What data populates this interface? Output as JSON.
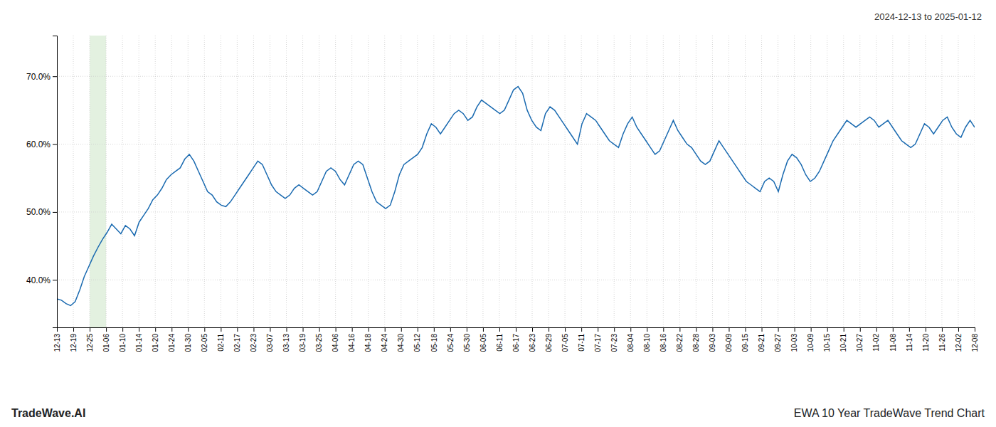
{
  "chart_data": {
    "type": "line",
    "title": "EWA 10 Year TradeWave Trend Chart",
    "subtitle": "2024-12-13 to 2025-01-12",
    "annotations": [
      "TradeWave.AI"
    ],
    "color": "#1a6ab0",
    "grid": true,
    "shade": {
      "from": 7.178571428571,
      "to": 10.767857142857,
      "color": "#d4ead0"
    },
    "xlim": [
      0,
      201
    ],
    "xticks": [
      {
        "value": 0,
        "label": "12-13"
      },
      {
        "value": 3.589285714286,
        "label": "12-19"
      },
      {
        "value": 7.178571428571,
        "label": "12-25"
      },
      {
        "value": 10.767857142857,
        "label": "01-06"
      },
      {
        "value": 14.357142857143,
        "label": "01-10"
      },
      {
        "value": 17.946428571429,
        "label": "01-14"
      },
      {
        "value": 21.535714285714,
        "label": "01-20"
      },
      {
        "value": 25.125,
        "label": "01-24"
      },
      {
        "value": 28.714285714286,
        "label": "01-30"
      },
      {
        "value": 32.303571428571,
        "label": "02-05"
      },
      {
        "value": 35.892857142857,
        "label": "02-11"
      },
      {
        "value": 39.482142857143,
        "label": "02-17"
      },
      {
        "value": 43.071428571429,
        "label": "02-23"
      },
      {
        "value": 46.660714285714,
        "label": "03-07"
      },
      {
        "value": 50.25,
        "label": "03-13"
      },
      {
        "value": 53.839285714286,
        "label": "03-19"
      },
      {
        "value": 57.428571428571,
        "label": "03-25"
      },
      {
        "value": 61.017857142857,
        "label": "04-06"
      },
      {
        "value": 64.607142857143,
        "label": "04-16"
      },
      {
        "value": 68.196428571429,
        "label": "04-18"
      },
      {
        "value": 71.785714285714,
        "label": "04-24"
      },
      {
        "value": 75.375,
        "label": "04-30"
      },
      {
        "value": 78.964285714286,
        "label": "05-12"
      },
      {
        "value": 82.553571428571,
        "label": "05-18"
      },
      {
        "value": 86.142857142857,
        "label": "05-24"
      },
      {
        "value": 89.732142857143,
        "label": "05-30"
      },
      {
        "value": 93.321428571429,
        "label": "06-05"
      },
      {
        "value": 96.910714285714,
        "label": "06-11"
      },
      {
        "value": 100.5,
        "label": "06-17"
      },
      {
        "value": 104.089285714286,
        "label": "06-23"
      },
      {
        "value": 107.678571428571,
        "label": "06-29"
      },
      {
        "value": 111.267857142857,
        "label": "07-05"
      },
      {
        "value": 114.857142857143,
        "label": "07-11"
      },
      {
        "value": 118.446428571429,
        "label": "07-17"
      },
      {
        "value": 122.035714285714,
        "label": "07-23"
      },
      {
        "value": 125.625,
        "label": "08-04"
      },
      {
        "value": 129.214285714286,
        "label": "08-10"
      },
      {
        "value": 132.803571428571,
        "label": "08-16"
      },
      {
        "value": 136.392857142857,
        "label": "08-22"
      },
      {
        "value": 139.982142857143,
        "label": "08-28"
      },
      {
        "value": 143.571428571429,
        "label": "09-03"
      },
      {
        "value": 147.160714285714,
        "label": "09-09"
      },
      {
        "value": 150.75,
        "label": "09-15"
      },
      {
        "value": 154.339285714286,
        "label": "09-21"
      },
      {
        "value": 157.928571428571,
        "label": "09-27"
      },
      {
        "value": 161.517857142857,
        "label": "10-03"
      },
      {
        "value": 165.107142857143,
        "label": "10-09"
      },
      {
        "value": 168.696428571429,
        "label": "10-15"
      },
      {
        "value": 172.285714285714,
        "label": "10-21"
      },
      {
        "value": 175.875,
        "label": "10-27"
      },
      {
        "value": 179.464285714286,
        "label": "11-02"
      },
      {
        "value": 183.053571428571,
        "label": "11-08"
      },
      {
        "value": 186.642857142857,
        "label": "11-14"
      },
      {
        "value": 190.232142857143,
        "label": "11-20"
      },
      {
        "value": 193.821428571429,
        "label": "11-26"
      },
      {
        "value": 197.410714285714,
        "label": "12-02"
      },
      {
        "value": 201,
        "label": "12-08"
      }
    ],
    "ylim": [
      33.0,
      76.0
    ],
    "yticks": [
      {
        "value": 40,
        "label": "40.0%"
      },
      {
        "value": 50,
        "label": "50.0%"
      },
      {
        "value": 60,
        "label": "60.0%"
      },
      {
        "value": 70,
        "label": "70.0%"
      }
    ],
    "values": [
      37.2,
      37.0,
      36.5,
      36.2,
      36.8,
      38.5,
      40.5,
      42.0,
      43.5,
      44.8,
      46.0,
      47.0,
      48.2,
      47.5,
      46.8,
      48.0,
      47.5,
      46.5,
      48.5,
      49.5,
      50.5,
      51.8,
      52.5,
      53.5,
      54.8,
      55.5,
      56.0,
      56.5,
      57.8,
      58.5,
      57.5,
      56.0,
      54.5,
      53.0,
      52.5,
      51.5,
      51.0,
      50.8,
      51.5,
      52.5,
      53.5,
      54.5,
      55.5,
      56.5,
      57.5,
      57.0,
      55.5,
      54.0,
      53.0,
      52.5,
      52.0,
      52.5,
      53.5,
      54.0,
      53.5,
      53.0,
      52.5,
      53.0,
      54.5,
      56.0,
      56.5,
      56.0,
      54.8,
      54.0,
      55.5,
      57.0,
      57.5,
      57.0,
      55.0,
      53.0,
      51.5,
      51.0,
      50.5,
      51.0,
      53.0,
      55.5,
      57.0,
      57.5,
      58.0,
      58.5,
      59.5,
      61.5,
      63.0,
      62.5,
      61.5,
      62.5,
      63.5,
      64.5,
      65.0,
      64.5,
      63.5,
      64.0,
      65.5,
      66.5,
      66.0,
      65.5,
      65.0,
      64.5,
      65.0,
      66.5,
      68.0,
      68.5,
      67.5,
      65.0,
      63.5,
      62.5,
      62.0,
      64.5,
      65.5,
      65.0,
      64.0,
      63.0,
      62.0,
      61.0,
      60.0,
      63.0,
      64.5,
      64.0,
      63.5,
      62.5,
      61.5,
      60.5,
      60.0,
      59.5,
      61.5,
      63.0,
      64.0,
      62.5,
      61.5,
      60.5,
      59.5,
      58.5,
      59.0,
      60.5,
      62.0,
      63.5,
      62.0,
      61.0,
      60.0,
      59.5,
      58.5,
      57.5,
      57.0,
      57.5,
      59.0,
      60.5,
      59.5,
      58.5,
      57.5,
      56.5,
      55.5,
      54.5,
      54.0,
      53.5,
      53.0,
      54.5,
      55.0,
      54.5,
      53.0,
      55.5,
      57.5,
      58.5,
      58.0,
      57.0,
      55.5,
      54.5,
      55.0,
      56.0,
      57.5,
      59.0,
      60.5,
      61.5,
      62.5,
      63.5,
      63.0,
      62.5,
      63.0,
      63.5,
      64.0,
      63.5,
      62.5,
      63.0,
      63.5,
      62.5,
      61.5,
      60.5,
      60.0,
      59.5,
      60.0,
      61.5,
      63.0,
      62.5,
      61.5,
      62.5,
      63.5,
      64.0,
      62.5,
      61.5,
      61.0,
      62.5,
      63.5,
      62.5
    ]
  }
}
